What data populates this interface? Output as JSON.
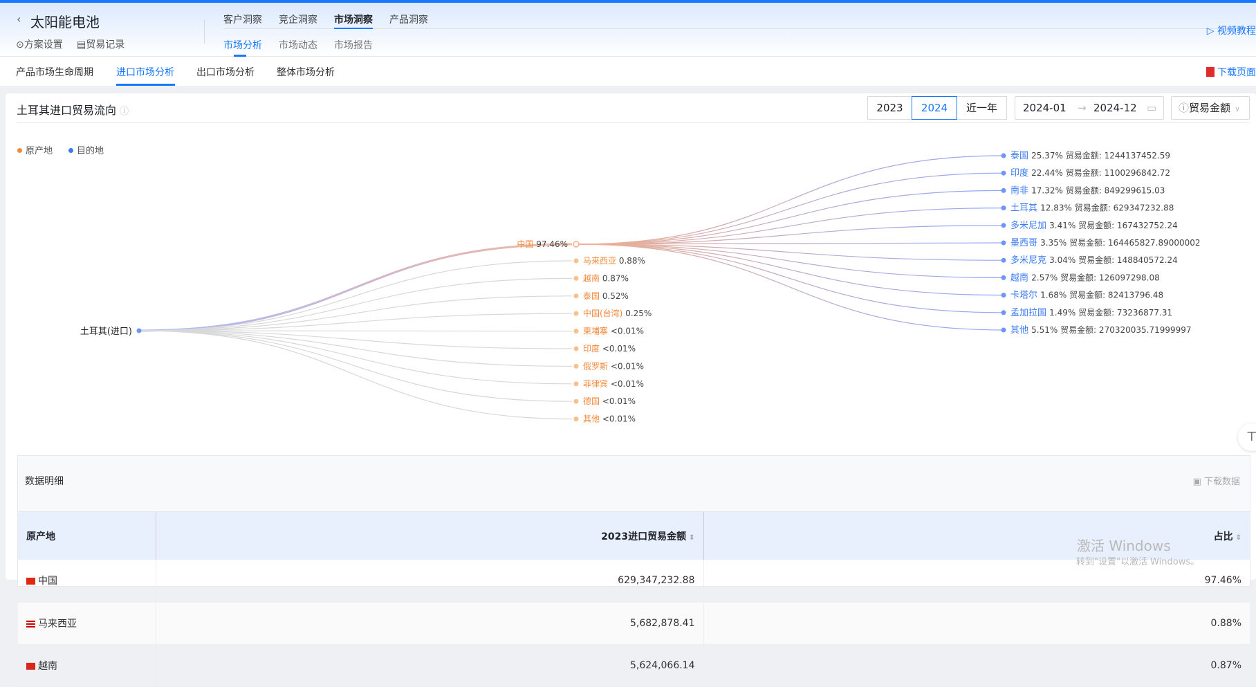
{
  "header": {
    "title": "太阳能电池",
    "settings": "方案设置",
    "trade_records": "贸易记录",
    "video": "视频教程",
    "nav": [
      "客户洞察",
      "竞企洞察",
      "市场洞察",
      "产品洞察"
    ],
    "subnav": [
      "市场分析",
      "市场动态",
      "市场报告"
    ]
  },
  "tabs": {
    "items": [
      "产品市场生命周期",
      "进口市场分析",
      "出口市场分析",
      "整体市场分析"
    ],
    "download_page": "下载页面"
  },
  "card": {
    "title": "土耳其进口贸易流向",
    "years": [
      "2023",
      "2024",
      "近一年"
    ],
    "range_start": "2024-01",
    "range_end": "2024-12",
    "metric": "贸易金额"
  },
  "legend": {
    "origin": "原产地",
    "dest": "目的地"
  },
  "colors": {
    "origin": "#f5893b",
    "dest": "#3a7bf5",
    "accent": "#1677ff"
  },
  "sankey": {
    "root": "土耳其(进口)",
    "sources": [
      {
        "name": "中国",
        "pct": "97.46%"
      },
      {
        "name": "马来西亚",
        "pct": "0.88%"
      },
      {
        "name": "越南",
        "pct": "0.87%"
      },
      {
        "name": "泰国",
        "pct": "0.52%"
      },
      {
        "name": "中国(台湾)",
        "pct": "0.25%"
      },
      {
        "name": "柬埔寨",
        "pct": "<0.01%"
      },
      {
        "name": "印度",
        "pct": "<0.01%"
      },
      {
        "name": "俄罗斯",
        "pct": "<0.01%"
      },
      {
        "name": "菲律宾",
        "pct": "<0.01%"
      },
      {
        "name": "德国",
        "pct": "<0.01%"
      },
      {
        "name": "其他",
        "pct": "<0.01%"
      }
    ],
    "amount_label": "贸易金额:",
    "targets": [
      {
        "name": "泰国",
        "pct": "25.37%",
        "amount": "1244137452.59"
      },
      {
        "name": "印度",
        "pct": "22.44%",
        "amount": "1100296842.72"
      },
      {
        "name": "南非",
        "pct": "17.32%",
        "amount": "849299615.03"
      },
      {
        "name": "土耳其",
        "pct": "12.83%",
        "amount": "629347232.88"
      },
      {
        "name": "多米尼加",
        "pct": "3.41%",
        "amount": "167432752.24"
      },
      {
        "name": "墨西哥",
        "pct": "3.35%",
        "amount": "164465827.89000002"
      },
      {
        "name": "多米尼克",
        "pct": "3.04%",
        "amount": "148840572.24"
      },
      {
        "name": "越南",
        "pct": "2.57%",
        "amount": "126097298.08"
      },
      {
        "name": "卡塔尔",
        "pct": "1.68%",
        "amount": "82413796.48"
      },
      {
        "name": "孟加拉国",
        "pct": "1.49%",
        "amount": "73236877.31"
      },
      {
        "name": "其他",
        "pct": "5.51%",
        "amount": "270320035.71999997"
      }
    ]
  },
  "table": {
    "title": "数据明细",
    "download": "下载数据",
    "columns": [
      "原产地",
      "2023进口贸易金额",
      "占比"
    ],
    "rows": [
      {
        "flag": "cn",
        "origin": "中国",
        "amount": "629,347,232.88",
        "share": "97.46%"
      },
      {
        "flag": "my",
        "origin": "马来西亚",
        "amount": "5,682,878.41",
        "share": "0.88%"
      },
      {
        "flag": "vn",
        "origin": "越南",
        "amount": "5,624,066.14",
        "share": "0.87%"
      }
    ]
  },
  "watermark": {
    "line1": "激活 Windows",
    "line2": "转到\"设置\"以激活 Windows。"
  }
}
